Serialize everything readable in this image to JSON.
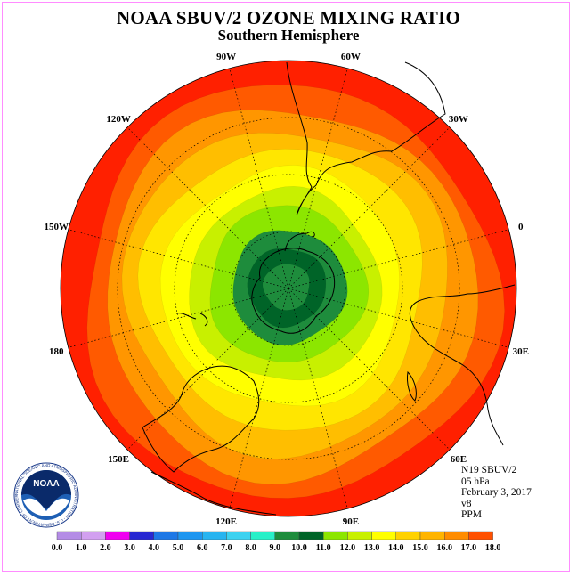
{
  "header": {
    "title": "NOAA SBUV/2 OZONE MIXING RATIO",
    "subtitle": "Southern Hemisphere"
  },
  "info": {
    "instrument": "N19 SBUV/2",
    "level": "05 hPa",
    "date": "February 3, 2017",
    "version": "v8",
    "units": "PPM"
  },
  "logo": {
    "text": "NOAA",
    "ring_text": "NATIONAL OCEANIC AND ATMOSPHERIC ADMINISTRATION - U.S. DEPARTMENT OF COMMERCE"
  },
  "longitude_labels": [
    "90W",
    "60W",
    "30W",
    "0",
    "30E",
    "60E",
    "90E",
    "120E",
    "150E",
    "180",
    "150W",
    "120W"
  ],
  "colorbar": {
    "ticks": [
      "0.0",
      "1.0",
      "2.0",
      "3.0",
      "4.0",
      "5.0",
      "6.0",
      "7.0",
      "8.0",
      "9.0",
      "10.0",
      "11.0",
      "12.0",
      "13.0",
      "14.0",
      "15.0",
      "16.0",
      "17.0",
      "18.0"
    ],
    "colors": [
      "#b48ce6",
      "#d2a0f0",
      "#f000f0",
      "#2828d2",
      "#1e78e6",
      "#1e96f0",
      "#28b4f0",
      "#3cd2f0",
      "#28f0c8",
      "#1e8c3c",
      "#006428",
      "#8ce600",
      "#c8f000",
      "#ffff00",
      "#ffd200",
      "#ffb400",
      "#ff8c00",
      "#ff5000",
      "#ff0000",
      "#8c5a3c"
    ]
  },
  "contour_fill_colors": [
    "#ff2000",
    "#ff5a00",
    "#ff9600",
    "#ffbe00",
    "#ffe600",
    "#ffff00",
    "#c8f000",
    "#8ce600",
    "#1e8c3c",
    "#006428",
    "#1e8c3c"
  ]
}
